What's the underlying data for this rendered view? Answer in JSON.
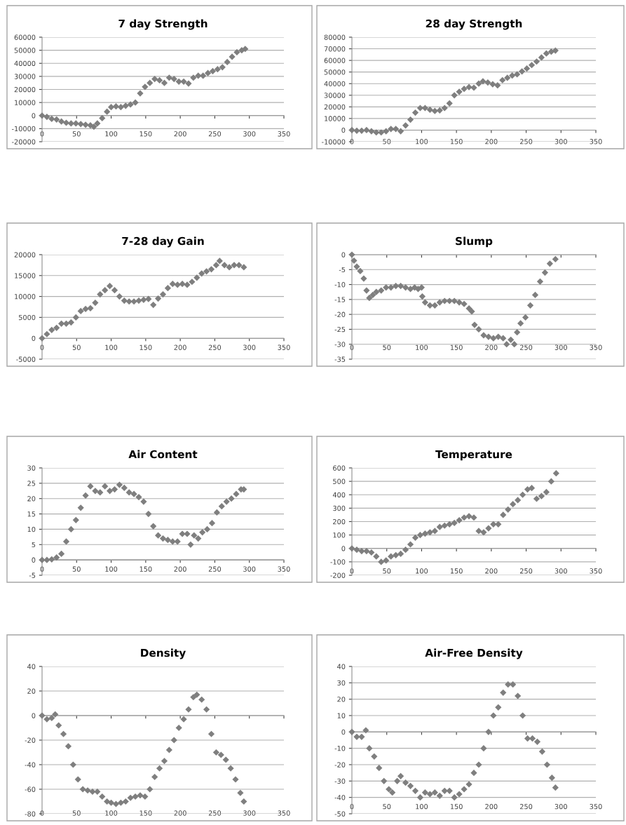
{
  "chart_data": [
    {
      "type": "scatter",
      "title": "7 day Strength",
      "color": "#7f7f7f",
      "marker": "diamond",
      "grid": "y",
      "xlim": [
        0,
        350
      ],
      "xticks": [
        0,
        50,
        100,
        150,
        200,
        250,
        300,
        350
      ],
      "ylim": [
        -20000,
        60000
      ],
      "yticks": [
        -20000,
        -10000,
        0,
        10000,
        20000,
        30000,
        40000,
        50000,
        60000
      ],
      "x": [
        0,
        7,
        14,
        21,
        28,
        35,
        42,
        49,
        56,
        63,
        70,
        75,
        80,
        87,
        94,
        100,
        107,
        114,
        121,
        128,
        135,
        142,
        149,
        156,
        163,
        170,
        177,
        184,
        191,
        198,
        205,
        212,
        219,
        226,
        233,
        240,
        247,
        254,
        261,
        268,
        275,
        282,
        289,
        294
      ],
      "values": [
        0,
        -1000,
        -2500,
        -3000,
        -4500,
        -5500,
        -6000,
        -6000,
        -6500,
        -7000,
        -7500,
        -8500,
        -6000,
        -2000,
        3000,
        6500,
        7000,
        6500,
        7500,
        8500,
        10000,
        17000,
        22000,
        25000,
        28000,
        27000,
        25000,
        29000,
        28000,
        26000,
        26000,
        24500,
        29000,
        30500,
        30500,
        32500,
        34000,
        35500,
        37000,
        41000,
        45000,
        48500,
        50000,
        51000
      ]
    },
    {
      "type": "scatter",
      "title": "28 day Strength",
      "color": "#7f7f7f",
      "marker": "diamond",
      "grid": "y",
      "xlim": [
        0,
        350
      ],
      "xticks": [
        0,
        50,
        100,
        150,
        200,
        250,
        300,
        350
      ],
      "ylim": [
        -10000,
        80000
      ],
      "yticks": [
        -10000,
        0,
        10000,
        20000,
        30000,
        40000,
        50000,
        60000,
        70000,
        80000
      ],
      "x": [
        0,
        7,
        14,
        21,
        28,
        35,
        42,
        49,
        56,
        63,
        70,
        77,
        84,
        91,
        98,
        105,
        112,
        119,
        126,
        133,
        140,
        147,
        154,
        161,
        168,
        175,
        182,
        188,
        195,
        202,
        209,
        216,
        223,
        230,
        237,
        244,
        251,
        258,
        265,
        272,
        279,
        286,
        292
      ],
      "values": [
        0,
        -500,
        -500,
        0,
        -1000,
        -2000,
        -2000,
        -1000,
        1000,
        1000,
        -1000,
        4000,
        9000,
        15000,
        19000,
        19000,
        17500,
        16500,
        17000,
        19000,
        23000,
        30000,
        33000,
        35500,
        37000,
        36500,
        40000,
        42000,
        41000,
        39500,
        38500,
        43000,
        45000,
        47000,
        48000,
        50500,
        53000,
        56000,
        59000,
        62500,
        66000,
        67500,
        68500
      ]
    },
    {
      "type": "scatter",
      "title": "7-28 day Gain",
      "color": "#7f7f7f",
      "marker": "diamond",
      "grid": "y",
      "xlim": [
        0,
        350
      ],
      "xticks": [
        0,
        50,
        100,
        150,
        200,
        250,
        300,
        350
      ],
      "ylim": [
        -5000,
        20000
      ],
      "yticks": [
        -5000,
        0,
        5000,
        10000,
        15000,
        20000
      ],
      "x": [
        0,
        7,
        14,
        21,
        28,
        35,
        42,
        49,
        56,
        63,
        70,
        77,
        84,
        91,
        98,
        105,
        112,
        119,
        126,
        133,
        140,
        147,
        154,
        161,
        168,
        175,
        182,
        189,
        196,
        203,
        210,
        217,
        224,
        231,
        238,
        245,
        252,
        257,
        264,
        271,
        278,
        285,
        292
      ],
      "values": [
        0,
        1000,
        2000,
        2500,
        3500,
        3500,
        3800,
        5000,
        6500,
        7000,
        7200,
        8500,
        10500,
        11500,
        12500,
        11500,
        10000,
        9000,
        8800,
        8800,
        9000,
        9200,
        9400,
        8000,
        9500,
        10500,
        12000,
        13000,
        12800,
        13000,
        12800,
        13500,
        14500,
        15500,
        16000,
        16500,
        17500,
        18500,
        17500,
        17000,
        17500,
        17500,
        17000
      ]
    },
    {
      "type": "scatter",
      "title": "Slump",
      "color": "#7f7f7f",
      "marker": "diamond",
      "grid": "y",
      "xlim": [
        0,
        350
      ],
      "xticks": [
        0,
        50,
        100,
        150,
        200,
        250,
        300,
        350
      ],
      "ylim": [
        -35,
        0
      ],
      "yticks": [
        -35,
        -30,
        -25,
        -20,
        -15,
        -10,
        -5,
        0
      ],
      "x": [
        0,
        3,
        7,
        12,
        17,
        21,
        25,
        30,
        35,
        42,
        49,
        56,
        63,
        70,
        77,
        84,
        90,
        95,
        100,
        101,
        105,
        112,
        119,
        126,
        133,
        140,
        147,
        154,
        161,
        168,
        172,
        176,
        182,
        189,
        196,
        203,
        210,
        217,
        222,
        228,
        233,
        237,
        242,
        249,
        256,
        263,
        270,
        277,
        284,
        292
      ],
      "values": [
        0,
        -2,
        -4,
        -5.5,
        -8,
        -12,
        -14.5,
        -13.5,
        -12.5,
        -12,
        -11,
        -11,
        -10.5,
        -10.5,
        -11,
        -11.5,
        -11,
        -11.5,
        -11,
        -14,
        -16,
        -17,
        -17,
        -16,
        -15.5,
        -15.5,
        -15.5,
        -16,
        -16.5,
        -18,
        -19,
        -23.5,
        -25,
        -27,
        -27.5,
        -28,
        -27.5,
        -28,
        -30,
        -28.5,
        -30,
        -26,
        -23,
        -21,
        -17,
        -13.5,
        -9,
        -6,
        -3,
        -1.5
      ]
    },
    {
      "type": "scatter",
      "title": "Air Content",
      "color": "#7f7f7f",
      "marker": "diamond",
      "grid": "y",
      "xlim": [
        0,
        350
      ],
      "xticks": [
        0,
        50,
        100,
        150,
        200,
        250,
        300,
        350
      ],
      "ylim": [
        -5,
        30
      ],
      "yticks": [
        -5,
        0,
        5,
        10,
        15,
        20,
        25,
        30
      ],
      "x": [
        0,
        7,
        14,
        21,
        28,
        35,
        42,
        49,
        56,
        63,
        70,
        77,
        84,
        91,
        98,
        105,
        112,
        119,
        126,
        133,
        140,
        147,
        154,
        161,
        168,
        175,
        182,
        189,
        196,
        203,
        210,
        215,
        220,
        226,
        232,
        239,
        246,
        253,
        260,
        267,
        274,
        281,
        288,
        292
      ],
      "values": [
        0,
        0,
        0.2,
        0.8,
        2,
        6,
        10,
        13,
        17,
        21,
        24,
        22.5,
        22,
        24,
        22.5,
        23,
        24.5,
        23.5,
        22,
        21.5,
        20.5,
        19,
        15,
        11,
        8,
        7,
        6.5,
        6,
        6,
        8.5,
        8.5,
        5,
        8,
        7,
        9,
        10,
        12,
        15.5,
        17.5,
        19,
        20,
        21.5,
        23,
        23
      ]
    },
    {
      "type": "scatter",
      "title": "Temperature",
      "color": "#7f7f7f",
      "marker": "diamond",
      "grid": "y",
      "xlim": [
        0,
        350
      ],
      "xticks": [
        0,
        50,
        100,
        150,
        200,
        250,
        300,
        350
      ],
      "ylim": [
        -200,
        600
      ],
      "yticks": [
        -200,
        -100,
        0,
        100,
        200,
        300,
        400,
        500,
        600
      ],
      "x": [
        0,
        7,
        14,
        21,
        28,
        35,
        42,
        49,
        56,
        63,
        70,
        77,
        84,
        91,
        98,
        105,
        112,
        119,
        126,
        133,
        140,
        147,
        154,
        161,
        168,
        175,
        182,
        189,
        196,
        203,
        210,
        217,
        224,
        231,
        238,
        245,
        252,
        258,
        265,
        272,
        279,
        286,
        293
      ],
      "values": [
        0,
        -10,
        -20,
        -20,
        -30,
        -60,
        -100,
        -90,
        -60,
        -50,
        -40,
        -10,
        30,
        80,
        100,
        110,
        120,
        130,
        160,
        170,
        180,
        190,
        210,
        230,
        240,
        230,
        130,
        120,
        150,
        180,
        180,
        250,
        290,
        330,
        360,
        400,
        440,
        450,
        370,
        390,
        420,
        500,
        560
      ]
    },
    {
      "type": "scatter",
      "title": "Density",
      "color": "#7f7f7f",
      "marker": "diamond",
      "grid": "y",
      "xlim": [
        0,
        350
      ],
      "xticks": [
        0,
        50,
        100,
        150,
        200,
        250,
        300,
        350
      ],
      "ylim": [
        -80,
        40
      ],
      "yticks": [
        -80,
        -60,
        -40,
        -20,
        0,
        20,
        40
      ],
      "x": [
        0,
        7,
        14,
        19,
        24,
        31,
        38,
        45,
        52,
        59,
        66,
        73,
        80,
        87,
        94,
        100,
        107,
        114,
        121,
        128,
        135,
        142,
        149,
        156,
        163,
        170,
        177,
        184,
        191,
        198,
        205,
        212,
        219,
        224,
        231,
        238,
        245,
        252,
        259,
        266,
        273,
        280,
        287,
        292
      ],
      "values": [
        0,
        -3,
        -2,
        1,
        -8,
        -15,
        -25,
        -40,
        -52,
        -60,
        -61,
        -62,
        -62,
        -66,
        -70,
        -71,
        -72,
        -71,
        -70,
        -67,
        -66,
        -65,
        -66,
        -60,
        -50,
        -43,
        -37,
        -28,
        -20,
        -10,
        -3,
        5,
        15,
        17,
        13,
        5,
        -15,
        -30,
        -32,
        -36,
        -43,
        -52,
        -63,
        -70
      ]
    },
    {
      "type": "scatter",
      "title": "Air-Free Density",
      "color": "#7f7f7f",
      "marker": "diamond",
      "grid": "y",
      "xlim": [
        0,
        350
      ],
      "xticks": [
        0,
        50,
        100,
        150,
        200,
        250,
        300,
        350
      ],
      "ylim": [
        -50,
        40
      ],
      "yticks": [
        -50,
        -40,
        -30,
        -20,
        -10,
        0,
        10,
        20,
        30,
        40
      ],
      "x": [
        0,
        7,
        14,
        20,
        25,
        32,
        39,
        46,
        53,
        58,
        65,
        70,
        77,
        84,
        91,
        98,
        105,
        112,
        119,
        126,
        133,
        140,
        147,
        154,
        161,
        168,
        175,
        182,
        189,
        196,
        203,
        210,
        217,
        224,
        231,
        238,
        245,
        252,
        259,
        266,
        273,
        280,
        287,
        292
      ],
      "values": [
        0,
        -3,
        -3,
        1,
        -10,
        -15,
        -22,
        -30,
        -35,
        -37,
        -30,
        -27,
        -31,
        -33,
        -36,
        -40,
        -37,
        -38,
        -37,
        -39,
        -36,
        -36,
        -40,
        -38,
        -35,
        -32,
        -25,
        -20,
        -10,
        0,
        10,
        15,
        24,
        29,
        29,
        22,
        10,
        -4,
        -4,
        -6,
        -12,
        -20,
        -28,
        -34
      ]
    }
  ]
}
